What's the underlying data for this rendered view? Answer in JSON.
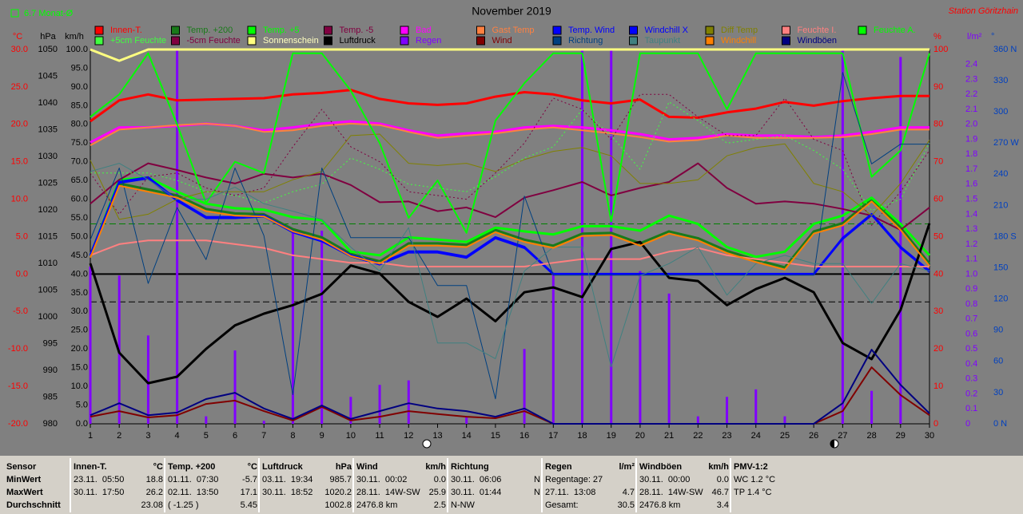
{
  "chart_data": {
    "type": "line",
    "title": "November 2019",
    "station": "Station Göritzhain",
    "avg_label": {
      "value": 6.7,
      "label": "6.7 Monat-Ø"
    },
    "axis_units": {
      "y": "°C",
      "y2": "hPa",
      "y3": "km/h",
      "y4": "%",
      "y5": "l/m²",
      "y6": "°"
    },
    "grid": false,
    "zero_line": true,
    "xlim": [
      1,
      30
    ],
    "xticks": [
      1,
      2,
      3,
      4,
      5,
      6,
      7,
      8,
      9,
      10,
      11,
      12,
      13,
      14,
      15,
      16,
      17,
      18,
      19,
      20,
      21,
      22,
      23,
      24,
      25,
      26,
      27,
      28,
      29,
      30
    ],
    "x": [
      1,
      2,
      3,
      4,
      5,
      6,
      7,
      8,
      9,
      10,
      11,
      12,
      13,
      14,
      15,
      16,
      17,
      18,
      19,
      20,
      21,
      22,
      23,
      24,
      25,
      26,
      27,
      28,
      29,
      30
    ],
    "ylim": [
      -20,
      30
    ],
    "yticks": [
      {
        "value": 30,
        "label": "30.0"
      },
      {
        "value": 25,
        "label": "25.0"
      },
      {
        "value": 20,
        "label": "20.0"
      },
      {
        "value": 15,
        "label": "15.0"
      },
      {
        "value": 10,
        "label": "10.0"
      },
      {
        "value": 5,
        "label": "5.0"
      },
      {
        "value": 0,
        "label": "0.0"
      },
      {
        "value": -5,
        "label": "-5.0"
      },
      {
        "value": -10,
        "label": "-10.0"
      },
      {
        "value": -15,
        "label": "-15.0"
      },
      {
        "value": -20,
        "label": "-20.0"
      }
    ],
    "y2lim": [
      980,
      1050
    ],
    "y2ticks": [
      1050,
      1045,
      1040,
      1035,
      1030,
      1025,
      1020,
      1015,
      1010,
      1005,
      1000,
      995,
      990,
      985,
      980
    ],
    "y3lim": [
      0,
      100
    ],
    "y3ticks": [
      {
        "value": 100,
        "label": "100.0"
      },
      {
        "value": 95,
        "label": "95.0"
      },
      {
        "value": 90,
        "label": "90.0"
      },
      {
        "value": 85,
        "label": "85.0"
      },
      {
        "value": 80,
        "label": "80.0"
      },
      {
        "value": 75,
        "label": "75.0"
      },
      {
        "value": 70,
        "label": "70.0"
      },
      {
        "value": 65,
        "label": "65.0"
      },
      {
        "value": 60,
        "label": "60.0"
      },
      {
        "value": 55,
        "label": "55.0"
      },
      {
        "value": 50,
        "label": "50.0"
      },
      {
        "value": 45,
        "label": "45.0"
      },
      {
        "value": 40,
        "label": "40.0"
      },
      {
        "value": 35,
        "label": "35.0"
      },
      {
        "value": 30,
        "label": "30.0"
      },
      {
        "value": 25,
        "label": "25.0"
      },
      {
        "value": 20,
        "label": "20.0"
      },
      {
        "value": 15,
        "label": "15.0"
      },
      {
        "value": 10,
        "label": "10.0"
      },
      {
        "value": 5,
        "label": "5.0"
      },
      {
        "value": 0,
        "label": "0.0"
      }
    ],
    "y4lim": [
      0,
      100
    ],
    "y4ticks": [
      100,
      90,
      80,
      70,
      60,
      50,
      40,
      30,
      20,
      10,
      0
    ],
    "y5lim": [
      0,
      2.5
    ],
    "y5ticks": [
      2.4,
      2.3,
      2.2,
      2.1,
      {
        "value": 2,
        "label": "2.0"
      },
      1.9,
      1.8,
      1.7,
      1.6,
      1.5,
      1.4,
      1.3,
      1.2,
      1.1,
      {
        "value": 1,
        "label": "1.0"
      },
      0.9,
      0.8,
      0.7,
      0.6,
      0.5,
      0.4,
      0.3,
      0.2,
      0.1,
      0
    ],
    "y6lim": [
      0,
      360
    ],
    "y6ticks": [
      {
        "value": 360,
        "label": "360 N"
      },
      330,
      300,
      {
        "value": 270,
        "label": "270 W"
      },
      240,
      210,
      {
        "value": 180,
        "label": "180 S"
      },
      150,
      120,
      90,
      60,
      30,
      {
        "value": 0,
        "label": "0 N"
      }
    ],
    "series": [
      {
        "name": "Innen-T.",
        "color": "#ff0000",
        "axis": "y",
        "style": "thick",
        "values": [
          20.4,
          23.2,
          24.0,
          23.2,
          23.3,
          23.4,
          23.5,
          24.0,
          24.2,
          24.6,
          23.4,
          22.8,
          22.6,
          22.8,
          23.7,
          24.3,
          24.0,
          23.2,
          22.8,
          23.3,
          21.0,
          20.9,
          21.6,
          22.1,
          23.0,
          22.5,
          23.1,
          23.5,
          23.8,
          23.8
        ]
      },
      {
        "name": "Temp. +200",
        "color": "#1a7a1a",
        "axis": "y",
        "style": "thick",
        "values": [
          2.5,
          12.1,
          11.3,
          10.5,
          8.7,
          8.1,
          8.0,
          6.0,
          4.9,
          2.7,
          1.7,
          4.1,
          4.1,
          3.9,
          5.9,
          4.6,
          3.8,
          5.4,
          5.5,
          4.1,
          5.7,
          4.8,
          3.1,
          1.9,
          0.9,
          5.7,
          6.8,
          10.0,
          6.2,
          1.4
        ]
      },
      {
        "name": "Temp. +5",
        "color": "#00ff00",
        "axis": "y",
        "style": "thick",
        "values": [
          2.5,
          12.6,
          12.9,
          11.0,
          9.4,
          8.8,
          8.6,
          7.6,
          7.2,
          3.0,
          2.5,
          4.9,
          4.6,
          4.3,
          6.2,
          5.7,
          5.3,
          6.4,
          6.4,
          5.8,
          7.8,
          6.7,
          3.6,
          2.3,
          3.0,
          6.7,
          7.8,
          10.2,
          6.7,
          2.5
        ]
      },
      {
        "name": "Temp. -5",
        "color": "#800040",
        "axis": "y",
        "style": "medium",
        "values": [
          9.4,
          12.6,
          14.8,
          13.9,
          12.9,
          12.1,
          13.4,
          12.9,
          13.4,
          11.9,
          9.6,
          9.7,
          8.4,
          8.9,
          7.6,
          10.2,
          11.2,
          12.3,
          10.5,
          11.5,
          12.3,
          14.8,
          11.5,
          9.4,
          9.7,
          9.4,
          8.7,
          7.8,
          5.9,
          8.9
        ]
      },
      {
        "name": "Bad",
        "color": "#ff00ff",
        "axis": "y",
        "style": "thick",
        "values": [
          17.6,
          19.6,
          19.6,
          19.8,
          20.1,
          19.8,
          19.2,
          19.6,
          20.1,
          20.4,
          20.1,
          19.2,
          18.5,
          18.8,
          19.0,
          19.6,
          19.8,
          19.6,
          19.2,
          18.7,
          18.0,
          18.2,
          18.7,
          18.5,
          18.5,
          18.3,
          18.5,
          19.0,
          19.6,
          19.6
        ]
      },
      {
        "name": "Gast Temp",
        "color": "#ff8040",
        "axis": "y",
        "style": "medium",
        "values": [
          17.2,
          19.3,
          19.6,
          19.9,
          20.1,
          19.8,
          19.0,
          19.2,
          19.8,
          20.1,
          19.9,
          19.0,
          18.2,
          18.5,
          18.8,
          19.3,
          19.6,
          19.2,
          18.8,
          18.3,
          17.7,
          17.9,
          18.5,
          18.2,
          18.2,
          18.2,
          18.3,
          18.7,
          19.3,
          19.3
        ]
      },
      {
        "name": "Temp. Wind",
        "color": "#0000ff",
        "axis": "y",
        "style": "thin",
        "values": [
          2.3,
          12.1,
          12.7,
          9.7,
          7.4,
          7.4,
          7.6,
          5.5,
          4.3,
          2.3,
          1.2,
          2.8,
          2.8,
          2.1,
          4.7,
          3.4,
          0.0,
          0.0,
          0.0,
          0.0,
          0.0,
          0.0,
          0.0,
          0.0,
          0.0,
          0.0,
          4.6,
          7.8,
          3.4,
          0.2
        ]
      },
      {
        "name": "Windchill X",
        "color": "#0000ff",
        "axis": "y",
        "style": "thick",
        "values": [
          2.5,
          12.3,
          12.9,
          9.9,
          7.6,
          7.6,
          7.8,
          5.7,
          4.5,
          2.5,
          1.4,
          3.0,
          3.0,
          2.3,
          4.9,
          3.6,
          0.0,
          0.0,
          0.0,
          0.0,
          0.0,
          0.0,
          0.0,
          0.0,
          0.0,
          0.0,
          4.8,
          8.0,
          3.6,
          0.4
        ]
      },
      {
        "name": "Diff Temp",
        "color": "#808000",
        "axis": "y",
        "style": "thin",
        "values": [
          15.2,
          7.3,
          8.0,
          10.0,
          11.0,
          11.0,
          11.0,
          12.6,
          13.7,
          18.5,
          18.7,
          14.8,
          14.5,
          14.8,
          13.7,
          15.3,
          16.4,
          16.9,
          15.8,
          12.1,
          12.1,
          12.6,
          15.8,
          16.9,
          17.4,
          12.1,
          11.0,
          7.8,
          12.1,
          17.9
        ]
      },
      {
        "name": "Feuchte I.",
        "color": "#ff8080",
        "axis": "y4",
        "style": "medium",
        "values": [
          45,
          48,
          49,
          49,
          49,
          48,
          47,
          45,
          44,
          43,
          43,
          42,
          42,
          42,
          42,
          42,
          43,
          44,
          44,
          44,
          46,
          47,
          45,
          44,
          43,
          42,
          42,
          42,
          42,
          42
        ]
      },
      {
        "name": "Feuchte A.",
        "color": "#00ff00",
        "axis": "y4",
        "style": "medium",
        "values": [
          82,
          88,
          99,
          80,
          59,
          70,
          67,
          99,
          99,
          89,
          75,
          55,
          65,
          51,
          81,
          91,
          99,
          99,
          54,
          99,
          99,
          99,
          84,
          99,
          99,
          99,
          99,
          66,
          73,
          99
        ]
      },
      {
        "name": "+5cm Feuchte",
        "color": "#40ff40",
        "axis": "y4",
        "style": "dotted",
        "values": [
          67,
          67,
          67,
          65,
          62,
          61,
          59,
          62,
          64,
          71,
          68,
          64,
          63,
          62,
          66,
          71,
          74,
          84,
          77,
          68,
          86,
          81,
          75,
          76,
          77,
          73,
          68,
          57,
          60,
          75
        ]
      },
      {
        "name": "-5cm Feuchte",
        "color": "#800040",
        "axis": "y4",
        "style": "dotted",
        "values": [
          67,
          56,
          66,
          67,
          63,
          61,
          63,
          74,
          84,
          74,
          70,
          62,
          61,
          60,
          67,
          75,
          87,
          84,
          76,
          88,
          88,
          82,
          77,
          77,
          87,
          76,
          73,
          53,
          62,
          73
        ]
      },
      {
        "name": "Sonnenschein",
        "color": "#ffff80",
        "axis": "y4",
        "style": "thick",
        "values": [
          100,
          97,
          100,
          100,
          100,
          100,
          100,
          100,
          100,
          100,
          100,
          100,
          100,
          100,
          100,
          100,
          100,
          100,
          100,
          100,
          100,
          100,
          100,
          100,
          100,
          100,
          100,
          100,
          100,
          100
        ]
      },
      {
        "name": "Luftdruck",
        "color": "#000000",
        "axis": "y2",
        "style": "thick",
        "values": [
          1010.0,
          993.3,
          987.6,
          988.8,
          994.0,
          998.4,
          1000.6,
          1002.2,
          1004.3,
          1009.6,
          1008.1,
          1002.8,
          1000.0,
          1003.4,
          999.2,
          1004.6,
          1005.5,
          1003.7,
          1012.7,
          1014.0,
          1007.3,
          1006.7,
          1002.2,
          1005.2,
          1007.3,
          1004.6,
          995.1,
          992.1,
          1001.3,
          1017.5
        ]
      },
      {
        "name": "Regen",
        "color": "#8000ff",
        "axis": "y5",
        "style": "bar",
        "values": [
          1.05,
          0.99,
          0.59,
          2.5,
          0.05,
          0.49,
          0.02,
          1.29,
          1.29,
          0.18,
          0.26,
          0.29,
          0,
          0.05,
          0,
          0.5,
          1.0,
          2.5,
          2.5,
          1.02,
          0.87,
          0.05,
          0.18,
          0.23,
          0.05,
          0,
          2.5,
          0.22,
          2.45,
          0
        ]
      },
      {
        "name": "Wind",
        "color": "#800000",
        "axis": "y3",
        "style": "medium",
        "values": [
          1.9,
          3.4,
          1.7,
          2.3,
          5.3,
          6.2,
          3.4,
          0.9,
          4.5,
          0.9,
          1.9,
          3.4,
          2.6,
          1.9,
          1.5,
          3.4,
          0,
          0,
          0,
          0,
          0,
          0,
          0,
          0,
          0,
          0,
          3.4,
          15.1,
          7.7,
          2.3
        ]
      },
      {
        "name": "Richtung",
        "color": "#004080",
        "axis": "y6",
        "style": "thin",
        "values": [
          177,
          246,
          135,
          208,
          158,
          246,
          181,
          28,
          246,
          179,
          179,
          179,
          133,
          133,
          24,
          219,
          143,
          143,
          143,
          143,
          143,
          143,
          143,
          143,
          143,
          143,
          338,
          250,
          269,
          269
        ]
      },
      {
        "name": "Taupunkt",
        "color": "#408080",
        "axis": "y",
        "style": "thin",
        "values": [
          13.7,
          14.8,
          12.6,
          10.0,
          10.0,
          11.6,
          9.4,
          8.4,
          7.3,
          3.6,
          0.4,
          6.2,
          -9.2,
          -9.2,
          -11.3,
          0.4,
          3.6,
          3.6,
          -12.4,
          -0.2,
          1.4,
          3.6,
          -2.8,
          1.4,
          2.5,
          1.4,
          1.4,
          -3.9,
          1.4,
          0.4
        ]
      },
      {
        "name": "Windchill",
        "color": "#ff8000",
        "axis": "y",
        "style": "medium",
        "values": [
          2.2,
          11.8,
          11.0,
          10.2,
          8.4,
          7.8,
          7.7,
          5.7,
          4.6,
          2.4,
          1.4,
          3.8,
          3.8,
          3.6,
          5.6,
          4.3,
          3.5,
          5.1,
          5.2,
          3.8,
          5.4,
          4.5,
          2.8,
          1.6,
          0.6,
          5.4,
          6.5,
          9.7,
          5.9,
          1.1
        ]
      },
      {
        "name": "Windböen",
        "color": "#000080",
        "axis": "y3",
        "style": "medium",
        "values": [
          2.3,
          5.5,
          2.3,
          3.0,
          6.6,
          8.3,
          4.1,
          1.3,
          4.9,
          1.3,
          3.4,
          5.5,
          4.1,
          3.4,
          1.9,
          4.1,
          0,
          0,
          0,
          0,
          0,
          0,
          0,
          0,
          0,
          0,
          5.5,
          19.8,
          10.4,
          2.8
        ]
      }
    ],
    "stats": {
      "row_labels": [
        "Sensor",
        "MinWert",
        "MaxWert",
        "Durchschnitt"
      ],
      "blocks": [
        {
          "name": "Innen-T.",
          "unit": "°C",
          "rows": [
            [
              "23.11.  05:50",
              "18.8"
            ],
            [
              "30.11.  17:50",
              "26.2"
            ],
            [
              "23.08"
            ]
          ]
        },
        {
          "name": "Temp. +200",
          "unit": "°C",
          "rows": [
            [
              "01.11.  07:30",
              "-5.7"
            ],
            [
              "02.11.  13:50",
              "17.1"
            ],
            [
              "( -1.25 )",
              "5.45"
            ]
          ]
        },
        {
          "name": "Luftdruck",
          "unit": "hPa",
          "rows": [
            [
              "03.11.  19:34",
              "985.7"
            ],
            [
              "30.11.  18:52",
              "1020.2"
            ],
            [
              1002.8
            ]
          ]
        },
        {
          "name": "Wind",
          "unit": "km/h",
          "rows": [
            [
              "30.11.  00:02",
              "0.0"
            ],
            [
              "28.11.  14W-SW",
              "25.9"
            ],
            [
              "2476.8 km",
              "2.5"
            ]
          ]
        },
        {
          "name": "Richtung",
          "rows": [
            [
              "30.11.  06:06",
              "N"
            ],
            [
              "30.11.  01:44",
              "N"
            ],
            [
              "N-NW"
            ]
          ]
        },
        {
          "name": "Regen",
          "unit": "l/m²",
          "rows": [
            [
              "Regentage: 27"
            ],
            [
              "27.11.  13:08",
              "4.7"
            ],
            [
              "Gesamt:",
              "30.5"
            ]
          ]
        },
        {
          "name": "Windböen",
          "unit": "km/h",
          "rows": [
            [
              "30.11.  00:00",
              "0.0"
            ],
            [
              "28.11.  14W-SW",
              "46.7"
            ],
            [
              "2476.8 km",
              "3.4"
            ]
          ]
        },
        {
          "name": "PMV-1:2",
          "rows": [
            [
              "WC 1.2 °C"
            ],
            [
              "TP 1.4 °C"
            ]
          ]
        }
      ]
    }
  }
}
